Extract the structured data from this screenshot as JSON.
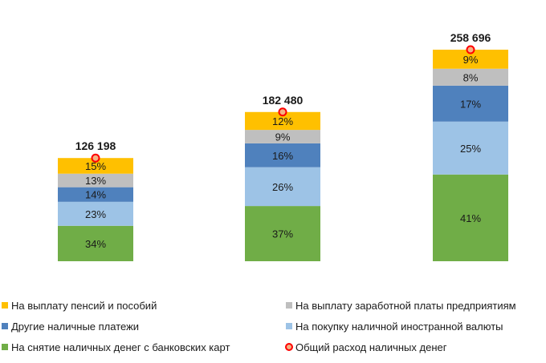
{
  "chart_data": {
    "type": "bar",
    "stacked": true,
    "categories": [
      "",
      "",
      ""
    ],
    "series": [
      {
        "name": "На снятие наличных денег с банковских карт",
        "color": "#70ad47",
        "values": [
          34,
          37,
          41
        ],
        "labels": [
          "34%",
          "37%",
          "41%"
        ]
      },
      {
        "name": "На покупку наличной иностранной валюты",
        "color": "#9dc3e6",
        "values": [
          23,
          26,
          25
        ],
        "labels": [
          "23%",
          "26%",
          "25%"
        ]
      },
      {
        "name": "Другие наличные платежи",
        "color": "#4f81bd",
        "values": [
          14,
          16,
          17
        ],
        "labels": [
          "14%",
          "16%",
          "17%"
        ]
      },
      {
        "name": "На выплату заработной платы предприятиям",
        "color": "#bfbfbf",
        "values": [
          13,
          9,
          8
        ],
        "labels": [
          "13%",
          "9%",
          "8%"
        ]
      },
      {
        "name": "На выплату пенсий и пособий",
        "color": "#ffc000",
        "values": [
          15,
          12,
          9
        ],
        "labels": [
          "15%",
          "12%",
          "9%"
        ]
      }
    ],
    "totals": {
      "name": "Общий расход наличных денег",
      "values": [
        126198,
        182480,
        258696
      ],
      "labels": [
        "126 198",
        "182 480",
        "258 696"
      ],
      "marker_color": "#ff0000",
      "marker_fill": "#f4b183"
    },
    "legend": {
      "placement": "bottom",
      "items": [
        {
          "label": "На выплату пенсий и пособий",
          "color": "#ffc000",
          "kind": "square"
        },
        {
          "label": "На выплату заработной платы предприятиям",
          "color": "#bfbfbf",
          "kind": "square"
        },
        {
          "label": "Другие наличные платежи",
          "color": "#4f81bd",
          "kind": "square"
        },
        {
          "label": "На покупку наличной иностранной валюты",
          "color": "#9dc3e6",
          "kind": "square"
        },
        {
          "label": "На снятие наличных денег с банковских карт",
          "color": "#70ad47",
          "kind": "square"
        },
        {
          "label": "Общий расход наличных денег",
          "color": "#ff0000",
          "kind": "marker"
        }
      ]
    },
    "grid": false
  }
}
